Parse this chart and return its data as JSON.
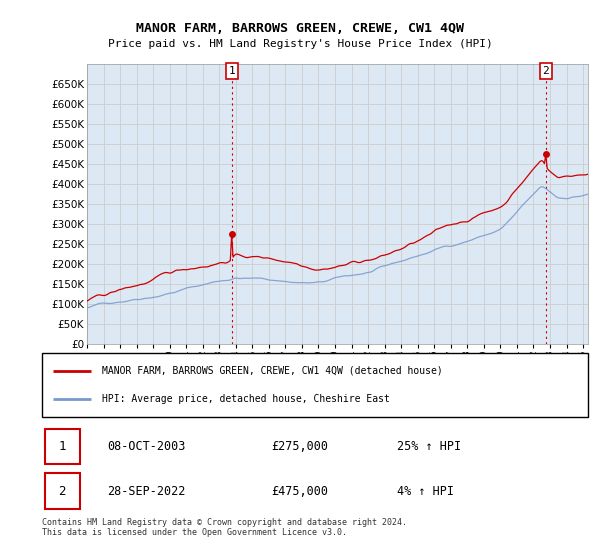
{
  "title": "MANOR FARM, BARROWS GREEN, CREWE, CW1 4QW",
  "subtitle": "Price paid vs. HM Land Registry's House Price Index (HPI)",
  "legend_line1": "MANOR FARM, BARROWS GREEN, CREWE, CW1 4QW (detached house)",
  "legend_line2": "HPI: Average price, detached house, Cheshire East",
  "footnote": "Contains HM Land Registry data © Crown copyright and database right 2024.\nThis data is licensed under the Open Government Licence v3.0.",
  "annotation1_date": "08-OCT-2003",
  "annotation1_price": "£275,000",
  "annotation1_hpi": "25% ↑ HPI",
  "annotation2_date": "28-SEP-2022",
  "annotation2_price": "£475,000",
  "annotation2_hpi": "4% ↑ HPI",
  "red_color": "#cc0000",
  "blue_color": "#7799cc",
  "grid_color": "#cccccc",
  "background_color": "#ffffff",
  "plot_bg_color": "#dde8f5",
  "ylim": [
    0,
    700000
  ],
  "yticks": [
    0,
    50000,
    100000,
    150000,
    200000,
    250000,
    300000,
    350000,
    400000,
    450000,
    500000,
    550000,
    600000,
    650000
  ],
  "sale1_year": 2003.78,
  "sale1_price": 275000,
  "sale2_year": 2022.74,
  "sale2_price": 475000
}
